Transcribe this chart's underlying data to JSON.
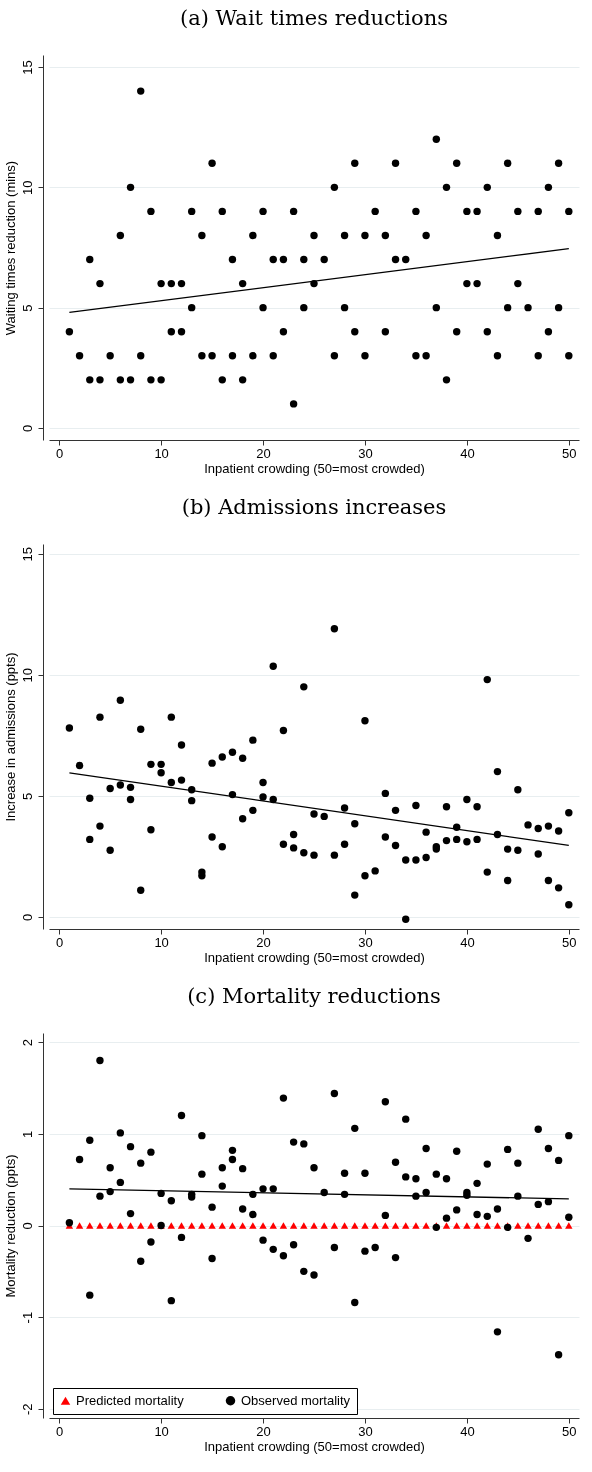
{
  "chart_data": [
    {
      "type": "scatter",
      "title": "(a) Wait times reductions",
      "xlabel": "Inpatient crowding (50=most crowded)",
      "ylabel": "Waiting times reduction (mins)",
      "xlim": [
        -1,
        51
      ],
      "ylim": [
        -0.5,
        15.5
      ],
      "xticks": [
        0,
        10,
        20,
        30,
        40,
        50
      ],
      "yticks": [
        0,
        5,
        10,
        15
      ],
      "grid": "y",
      "series": [
        {
          "color": "#000000",
          "marker": "circle",
          "x": [
            1,
            2,
            3,
            3,
            4,
            4,
            5,
            6,
            6,
            7,
            7,
            8,
            8,
            9,
            9,
            10,
            10,
            11,
            11,
            12,
            12,
            13,
            13,
            14,
            14,
            15,
            15,
            16,
            16,
            17,
            17,
            18,
            18,
            19,
            19,
            20,
            20,
            21,
            21,
            22,
            22,
            23,
            23,
            24,
            24,
            25,
            25,
            26,
            27,
            27,
            28,
            28,
            29,
            29,
            30,
            30,
            31,
            32,
            32,
            33,
            33,
            34,
            35,
            35,
            36,
            36,
            37,
            37,
            38,
            38,
            39,
            39,
            40,
            40,
            41,
            41,
            42,
            42,
            43,
            43,
            44,
            44,
            45,
            45,
            46,
            47,
            47,
            48,
            48,
            49,
            49,
            50,
            50
          ],
          "values": [
            4,
            3,
            7,
            2,
            6,
            2,
            3,
            8,
            2,
            10,
            2,
            14,
            3,
            9,
            2,
            6,
            2,
            6,
            4,
            6,
            4,
            9,
            5,
            8,
            3,
            11,
            3,
            9,
            2,
            7,
            3,
            6,
            2,
            8,
            3,
            9,
            5,
            7,
            3,
            7,
            4,
            9,
            1,
            7,
            5,
            8,
            6,
            7,
            10,
            3,
            8,
            5,
            11,
            4,
            8,
            3,
            9,
            8,
            4,
            11,
            7,
            7,
            9,
            3,
            8,
            3,
            12,
            5,
            10,
            2,
            11,
            4,
            9,
            6,
            9,
            6,
            10,
            4,
            8,
            3,
            11,
            5,
            9,
            6,
            5,
            9,
            3,
            10,
            4,
            11,
            5,
            9,
            3
          ]
        },
        {
          "type": "line",
          "color": "#000000",
          "x": [
            1,
            50
          ],
          "values": [
            4.8,
            7.45
          ]
        }
      ]
    },
    {
      "type": "scatter",
      "title": "(b) Admissions increases",
      "xlabel": "Inpatient crowding (50=most crowded)",
      "ylabel": "Increase in admissions (ppts)",
      "xlim": [
        -1,
        51
      ],
      "ylim": [
        -0.5,
        15.4
      ],
      "xticks": [
        0,
        10,
        20,
        30,
        40,
        50
      ],
      "yticks": [
        0,
        5,
        10,
        15
      ],
      "grid": "y",
      "series": [
        {
          "color": "#000000",
          "marker": "circle",
          "x": [
            1,
            2,
            3,
            3,
            4,
            4,
            5,
            5,
            6,
            6,
            7,
            7,
            8,
            8,
            9,
            9,
            10,
            10,
            11,
            11,
            12,
            12,
            13,
            13,
            14,
            14,
            15,
            15,
            16,
            16,
            17,
            17,
            18,
            18,
            19,
            19,
            20,
            20,
            21,
            21,
            22,
            22,
            23,
            23,
            24,
            24,
            25,
            25,
            26,
            27,
            27,
            28,
            28,
            29,
            29,
            30,
            30,
            31,
            32,
            32,
            33,
            33,
            34,
            34,
            35,
            35,
            36,
            36,
            37,
            37,
            38,
            38,
            39,
            39,
            40,
            40,
            41,
            41,
            42,
            42,
            43,
            43,
            44,
            44,
            45,
            45,
            46,
            47,
            47,
            48,
            48,
            49,
            49,
            50,
            50
          ],
          "values": [
            7.8,
            6.25,
            4.9,
            3.2,
            8.25,
            3.75,
            5.3,
            2.75,
            8.95,
            5.45,
            5.35,
            4.85,
            7.75,
            1.1,
            6.3,
            3.6,
            6.3,
            5.95,
            8.25,
            5.55,
            7.1,
            5.65,
            5.25,
            4.8,
            1.85,
            1.7,
            6.35,
            3.3,
            6.6,
            2.9,
            6.8,
            5.05,
            6.55,
            4.05,
            7.3,
            4.4,
            5.55,
            4.95,
            10.35,
            4.85,
            7.7,
            3.0,
            3.4,
            2.85,
            9.5,
            2.65,
            4.25,
            2.55,
            4.15,
            11.9,
            2.55,
            4.5,
            3.0,
            3.85,
            0.9,
            8.1,
            1.7,
            1.9,
            5.1,
            3.3,
            4.4,
            2.95,
            2.35,
            -0.1,
            4.6,
            2.35,
            3.5,
            2.45,
            2.9,
            2.8,
            4.55,
            3.15,
            3.7,
            3.2,
            4.85,
            3.1,
            4.55,
            3.2,
            9.8,
            1.85,
            6.0,
            3.4,
            2.8,
            1.5,
            5.25,
            2.75,
            3.8,
            3.65,
            2.6,
            3.75,
            1.5,
            3.55,
            1.2,
            4.3,
            0.5
          ]
        },
        {
          "type": "line",
          "color": "#000000",
          "x": [
            1,
            50
          ],
          "values": [
            5.95,
            2.95
          ]
        }
      ]
    },
    {
      "type": "scatter",
      "title": "(c) Mortality reductions",
      "xlabel": "Inpatient crowding (50=most crowded)",
      "ylabel": "Mortality reduction (ppts)",
      "xlim": [
        -1,
        51
      ],
      "ylim": [
        -2.1,
        2.1
      ],
      "xticks": [
        0,
        10,
        20,
        30,
        40,
        50
      ],
      "yticks": [
        -2,
        -1,
        0,
        1,
        2
      ],
      "grid": "y",
      "legend": "bottom",
      "series": [
        {
          "name": "Predicted mortality",
          "color": "#ff0000",
          "marker": "triangle",
          "x": [
            1,
            2,
            3,
            4,
            5,
            6,
            7,
            8,
            9,
            10,
            11,
            12,
            13,
            14,
            15,
            16,
            17,
            18,
            19,
            20,
            21,
            22,
            23,
            24,
            25,
            26,
            27,
            28,
            29,
            30,
            31,
            32,
            33,
            34,
            35,
            36,
            37,
            38,
            39,
            40,
            41,
            42,
            43,
            44,
            45,
            46,
            47,
            48,
            49,
            50
          ],
          "values": [
            0,
            0,
            0,
            0,
            0,
            0,
            0,
            0,
            0,
            0,
            0,
            0,
            0,
            0,
            0,
            0,
            0,
            0,
            0,
            0,
            0,
            0,
            0,
            0,
            0,
            0,
            0,
            0,
            0,
            0,
            0,
            0,
            0,
            0,
            0,
            0,
            0,
            0,
            0,
            0,
            0,
            0,
            0,
            0,
            0,
            0,
            0,
            0,
            0,
            0
          ]
        },
        {
          "name": "Observed mortality",
          "color": "#000000",
          "marker": "circle",
          "x": [
            1,
            2,
            3,
            3,
            4,
            4,
            5,
            5,
            6,
            6,
            7,
            7,
            8,
            8,
            9,
            9,
            10,
            10,
            11,
            11,
            12,
            12,
            13,
            13,
            14,
            14,
            15,
            15,
            16,
            16,
            17,
            17,
            18,
            18,
            19,
            19,
            20,
            20,
            21,
            21,
            22,
            22,
            23,
            23,
            24,
            24,
            25,
            25,
            26,
            27,
            27,
            28,
            28,
            29,
            29,
            30,
            30,
            31,
            32,
            32,
            33,
            33,
            34,
            34,
            35,
            35,
            36,
            36,
            37,
            37,
            38,
            38,
            39,
            39,
            40,
            40,
            41,
            41,
            42,
            42,
            43,
            43,
            44,
            44,
            45,
            45,
            46,
            47,
            47,
            48,
            48,
            49,
            49,
            50,
            50
          ],
          "values": [
            0.03,
            0.72,
            0.93,
            -0.76,
            1.8,
            0.32,
            0.63,
            0.37,
            1.01,
            0.47,
            0.86,
            0.13,
            0.68,
            -0.39,
            0.8,
            -0.18,
            0.35,
            0,
            0.27,
            -0.82,
            1.2,
            -0.13,
            0.34,
            0.31,
            0.98,
            0.56,
            0.2,
            -0.36,
            0.63,
            0.43,
            0.82,
            0.72,
            0.62,
            0.18,
            0.34,
            0.12,
            0.4,
            -0.16,
            0.4,
            -0.26,
            1.39,
            -0.33,
            0.91,
            -0.21,
            0.89,
            -0.5,
            0.63,
            -0.54,
            0.36,
            1.44,
            -0.24,
            0.57,
            0.34,
            1.06,
            -0.84,
            0.57,
            -0.28,
            -0.24,
            1.35,
            0.11,
            0.69,
            -0.35,
            1.16,
            0.53,
            0.51,
            0.32,
            0.84,
            0.36,
            0.56,
            -0.02,
            0.51,
            0.08,
            0.81,
            0.17,
            0.36,
            0.33,
            0.46,
            0.12,
            0.67,
            0.1,
            0.18,
            -1.16,
            0.83,
            -0.02,
            0.68,
            0.32,
            -0.14,
            1.05,
            0.23,
            0.84,
            0.26,
            0.71,
            -1.41,
            0.98,
            0.09
          ]
        },
        {
          "type": "line",
          "color": "#000000",
          "x": [
            1,
            50
          ],
          "values": [
            0.4,
            0.29
          ]
        }
      ]
    }
  ]
}
